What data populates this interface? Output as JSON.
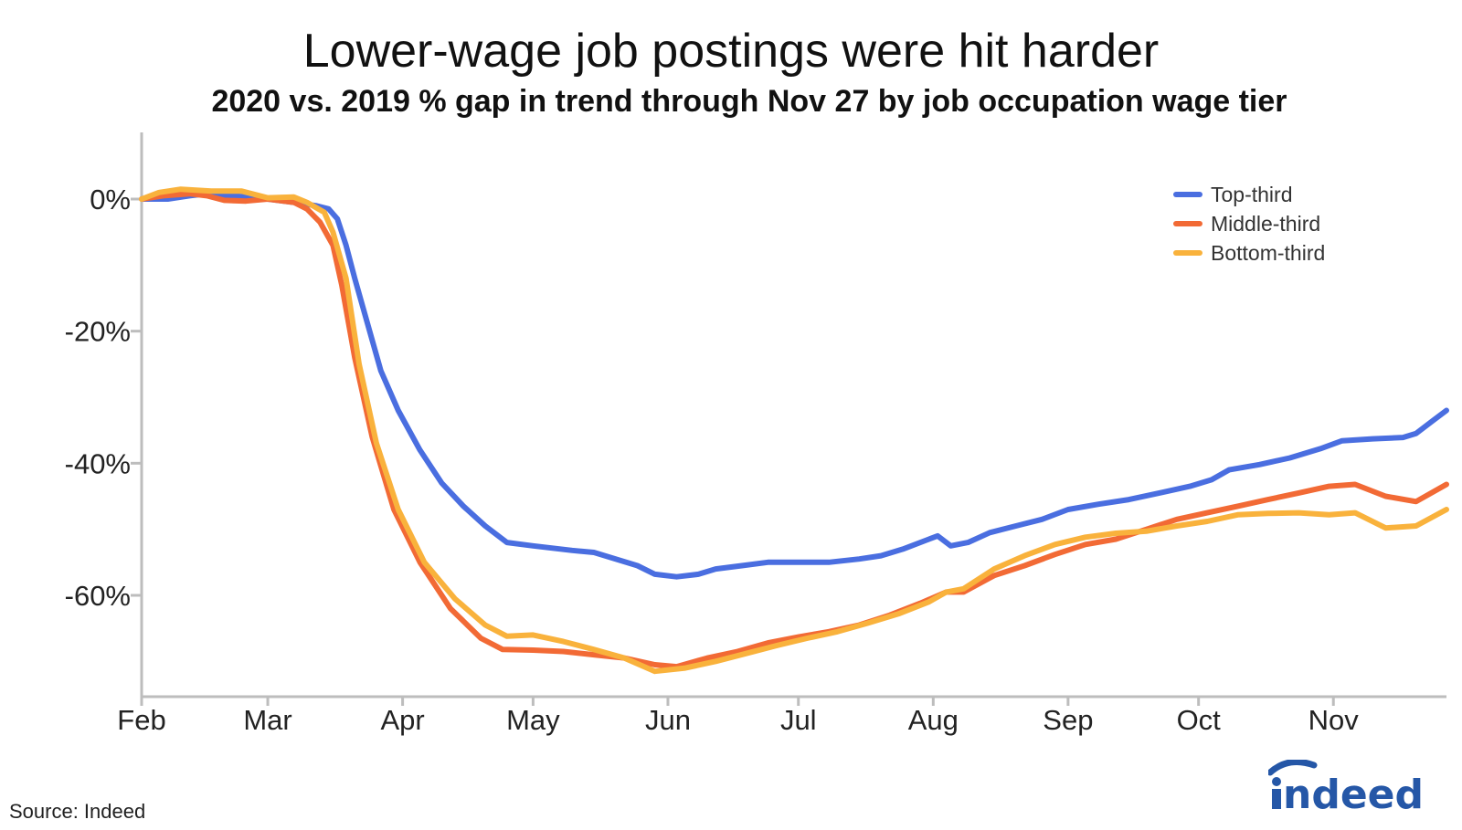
{
  "title": "Lower-wage job postings were hit harder",
  "subtitle": "2020 vs. 2019 % gap in trend through Nov 27 by job occupation wage tier",
  "source": "Source: Indeed",
  "logo_text": "indeed",
  "chart_data": {
    "type": "line",
    "title": "Lower-wage job postings were hit harder",
    "subtitle": "2020 vs. 2019 % gap in trend through Nov 27 by job occupation wage tier",
    "xlabel": "",
    "ylabel": "",
    "x_ticks": [
      "Feb",
      "Mar",
      "Apr",
      "May",
      "Jun",
      "Jul",
      "Aug",
      "Sep",
      "Oct",
      "Nov"
    ],
    "x_domain": [
      "2020-02-01",
      "2020-11-27"
    ],
    "y_ticks": [
      0,
      -20,
      -40,
      -60
    ],
    "y_tick_labels": [
      "0%",
      "-20%",
      "-40%",
      "-60%"
    ],
    "ylim": [
      -76,
      10
    ],
    "grid": false,
    "legend_position": "top-right",
    "series": [
      {
        "name": "Top-third",
        "color": "#4a6ee0",
        "points": [
          [
            "2020-02-01",
            0
          ],
          [
            "2020-02-07",
            0
          ],
          [
            "2020-02-12",
            0.5
          ],
          [
            "2020-02-16",
            0.8
          ],
          [
            "2020-02-22",
            0.5
          ],
          [
            "2020-03-01",
            0
          ],
          [
            "2020-03-07",
            -0.5
          ],
          [
            "2020-03-12",
            -1
          ],
          [
            "2020-03-15",
            -1.5
          ],
          [
            "2020-03-17",
            -3
          ],
          [
            "2020-03-19",
            -7
          ],
          [
            "2020-03-21",
            -12
          ],
          [
            "2020-03-24",
            -19
          ],
          [
            "2020-03-27",
            -26
          ],
          [
            "2020-03-31",
            -32
          ],
          [
            "2020-04-05",
            -38
          ],
          [
            "2020-04-10",
            -43
          ],
          [
            "2020-04-15",
            -46.5
          ],
          [
            "2020-04-20",
            -49.5
          ],
          [
            "2020-04-25",
            -52
          ],
          [
            "2020-05-01",
            -52.5
          ],
          [
            "2020-05-10",
            -53.2
          ],
          [
            "2020-05-15",
            -53.5
          ],
          [
            "2020-05-20",
            -54.5
          ],
          [
            "2020-05-25",
            -55.5
          ],
          [
            "2020-05-29",
            -56.8
          ],
          [
            "2020-06-03",
            -57.2
          ],
          [
            "2020-06-08",
            -56.8
          ],
          [
            "2020-06-12",
            -56
          ],
          [
            "2020-06-18",
            -55.5
          ],
          [
            "2020-06-24",
            -55
          ],
          [
            "2020-07-01",
            -55
          ],
          [
            "2020-07-08",
            -55
          ],
          [
            "2020-07-15",
            -54.5
          ],
          [
            "2020-07-20",
            -54
          ],
          [
            "2020-07-25",
            -53
          ],
          [
            "2020-07-31",
            -51.5
          ],
          [
            "2020-08-02",
            -51
          ],
          [
            "2020-08-05",
            -52.5
          ],
          [
            "2020-08-09",
            -52
          ],
          [
            "2020-08-14",
            -50.5
          ],
          [
            "2020-08-20",
            -49.5
          ],
          [
            "2020-08-26",
            -48.5
          ],
          [
            "2020-09-01",
            -47
          ],
          [
            "2020-09-08",
            -46.2
          ],
          [
            "2020-09-15",
            -45.5
          ],
          [
            "2020-09-22",
            -44.5
          ],
          [
            "2020-09-29",
            -43.5
          ],
          [
            "2020-10-04",
            -42.5
          ],
          [
            "2020-10-08",
            -41
          ],
          [
            "2020-10-15",
            -40.2
          ],
          [
            "2020-10-22",
            -39.2
          ],
          [
            "2020-10-29",
            -37.8
          ],
          [
            "2020-11-03",
            -36.6
          ],
          [
            "2020-11-10",
            -36.3
          ],
          [
            "2020-11-17",
            -36.1
          ],
          [
            "2020-11-20",
            -35.5
          ],
          [
            "2020-11-24",
            -33.5
          ],
          [
            "2020-11-27",
            -32
          ]
        ]
      },
      {
        "name": "Middle-third",
        "color": "#f26a35",
        "points": [
          [
            "2020-02-01",
            0
          ],
          [
            "2020-02-06",
            0.5
          ],
          [
            "2020-02-12",
            0.8
          ],
          [
            "2020-02-16",
            0.5
          ],
          [
            "2020-02-20",
            -0.2
          ],
          [
            "2020-02-25",
            -0.3
          ],
          [
            "2020-03-01",
            0
          ],
          [
            "2020-03-07",
            -0.5
          ],
          [
            "2020-03-10",
            -1.5
          ],
          [
            "2020-03-13",
            -3.5
          ],
          [
            "2020-03-16",
            -7
          ],
          [
            "2020-03-18",
            -13
          ],
          [
            "2020-03-21",
            -24
          ],
          [
            "2020-03-25",
            -36
          ],
          [
            "2020-03-30",
            -47
          ],
          [
            "2020-04-05",
            -55
          ],
          [
            "2020-04-12",
            -62
          ],
          [
            "2020-04-19",
            -66.5
          ],
          [
            "2020-04-24",
            -68.2
          ],
          [
            "2020-05-01",
            -68.3
          ],
          [
            "2020-05-08",
            -68.5
          ],
          [
            "2020-05-15",
            -69
          ],
          [
            "2020-05-22",
            -69.5
          ],
          [
            "2020-05-29",
            -70.5
          ],
          [
            "2020-06-03",
            -70.8
          ],
          [
            "2020-06-10",
            -69.5
          ],
          [
            "2020-06-17",
            -68.5
          ],
          [
            "2020-06-24",
            -67.2
          ],
          [
            "2020-07-01",
            -66.3
          ],
          [
            "2020-07-08",
            -65.5
          ],
          [
            "2020-07-15",
            -64.5
          ],
          [
            "2020-07-22",
            -63
          ],
          [
            "2020-07-29",
            -61.2
          ],
          [
            "2020-08-04",
            -59.5
          ],
          [
            "2020-08-08",
            -59.5
          ],
          [
            "2020-08-15",
            -57
          ],
          [
            "2020-08-22",
            -55.5
          ],
          [
            "2020-08-29",
            -53.8
          ],
          [
            "2020-09-05",
            -52.3
          ],
          [
            "2020-09-12",
            -51.5
          ],
          [
            "2020-09-19",
            -50
          ],
          [
            "2020-09-26",
            -48.5
          ],
          [
            "2020-10-03",
            -47.5
          ],
          [
            "2020-10-10",
            -46.5
          ],
          [
            "2020-10-17",
            -45.5
          ],
          [
            "2020-10-24",
            -44.5
          ],
          [
            "2020-10-31",
            -43.5
          ],
          [
            "2020-11-06",
            -43.2
          ],
          [
            "2020-11-13",
            -45
          ],
          [
            "2020-11-20",
            -45.8
          ],
          [
            "2020-11-27",
            -43.2
          ]
        ]
      },
      {
        "name": "Bottom-third",
        "color": "#f9b23c",
        "points": [
          [
            "2020-02-01",
            0
          ],
          [
            "2020-02-05",
            1
          ],
          [
            "2020-02-10",
            1.5
          ],
          [
            "2020-02-17",
            1.2
          ],
          [
            "2020-02-24",
            1.2
          ],
          [
            "2020-03-01",
            0.2
          ],
          [
            "2020-03-07",
            0.3
          ],
          [
            "2020-03-10",
            -0.5
          ],
          [
            "2020-03-14",
            -2
          ],
          [
            "2020-03-16",
            -5
          ],
          [
            "2020-03-19",
            -12
          ],
          [
            "2020-03-22",
            -25
          ],
          [
            "2020-03-26",
            -37
          ],
          [
            "2020-03-31",
            -47
          ],
          [
            "2020-04-06",
            -55
          ],
          [
            "2020-04-13",
            -60.5
          ],
          [
            "2020-04-20",
            -64.5
          ],
          [
            "2020-04-25",
            -66.2
          ],
          [
            "2020-05-01",
            -66
          ],
          [
            "2020-05-08",
            -67
          ],
          [
            "2020-05-15",
            -68.2
          ],
          [
            "2020-05-22",
            -69.5
          ],
          [
            "2020-05-29",
            -71.5
          ],
          [
            "2020-06-05",
            -71
          ],
          [
            "2020-06-12",
            -70
          ],
          [
            "2020-06-19",
            -68.8
          ],
          [
            "2020-06-26",
            -67.6
          ],
          [
            "2020-07-03",
            -66.5
          ],
          [
            "2020-07-10",
            -65.5
          ],
          [
            "2020-07-17",
            -64.2
          ],
          [
            "2020-07-24",
            -62.8
          ],
          [
            "2020-07-31",
            -61
          ],
          [
            "2020-08-04",
            -59.5
          ],
          [
            "2020-08-08",
            -59
          ],
          [
            "2020-08-15",
            -56
          ],
          [
            "2020-08-22",
            -54
          ],
          [
            "2020-08-29",
            -52.3
          ],
          [
            "2020-09-05",
            -51.2
          ],
          [
            "2020-09-12",
            -50.6
          ],
          [
            "2020-09-19",
            -50.3
          ],
          [
            "2020-09-26",
            -49.5
          ],
          [
            "2020-10-03",
            -48.8
          ],
          [
            "2020-10-10",
            -47.8
          ],
          [
            "2020-10-17",
            -47.6
          ],
          [
            "2020-10-24",
            -47.5
          ],
          [
            "2020-10-31",
            -47.8
          ],
          [
            "2020-11-06",
            -47.5
          ],
          [
            "2020-11-13",
            -49.8
          ],
          [
            "2020-11-20",
            -49.5
          ],
          [
            "2020-11-27",
            -47
          ]
        ]
      }
    ]
  }
}
